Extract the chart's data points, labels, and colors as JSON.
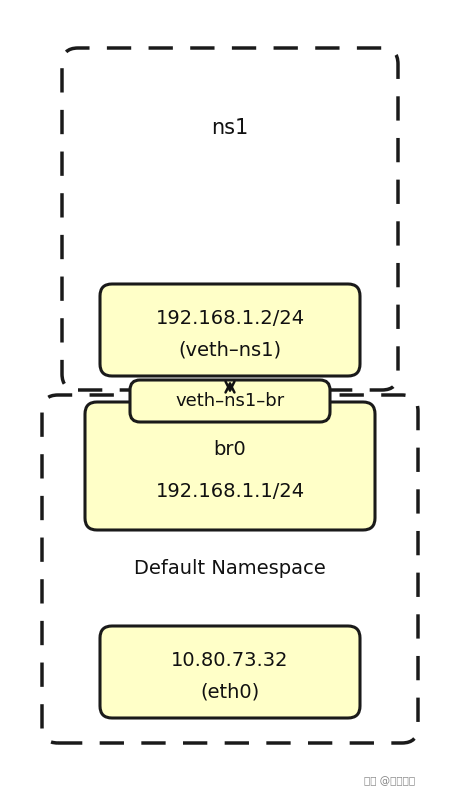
{
  "bg_color": "#ffffff",
  "box_fill": "#ffffc8",
  "box_edge": "#1a1a1a",
  "dashed_edge": "#1a1a1a",
  "arrow_color": "#111111",
  "ns1_label": "ns1",
  "veth_ns1_line1": "192.168.1.2/24",
  "veth_ns1_line2": "(veth–ns1)",
  "veth_ns1br_label": "veth–ns1–br",
  "br0_line1": "br0",
  "br0_line2": "192.168.1.1/24",
  "default_ns_label": "Default Namespace",
  "eth0_line1": "10.80.73.32",
  "eth0_line2": "(eth0)",
  "fig_w": 4.6,
  "fig_h": 7.98,
  "dpi": 100
}
